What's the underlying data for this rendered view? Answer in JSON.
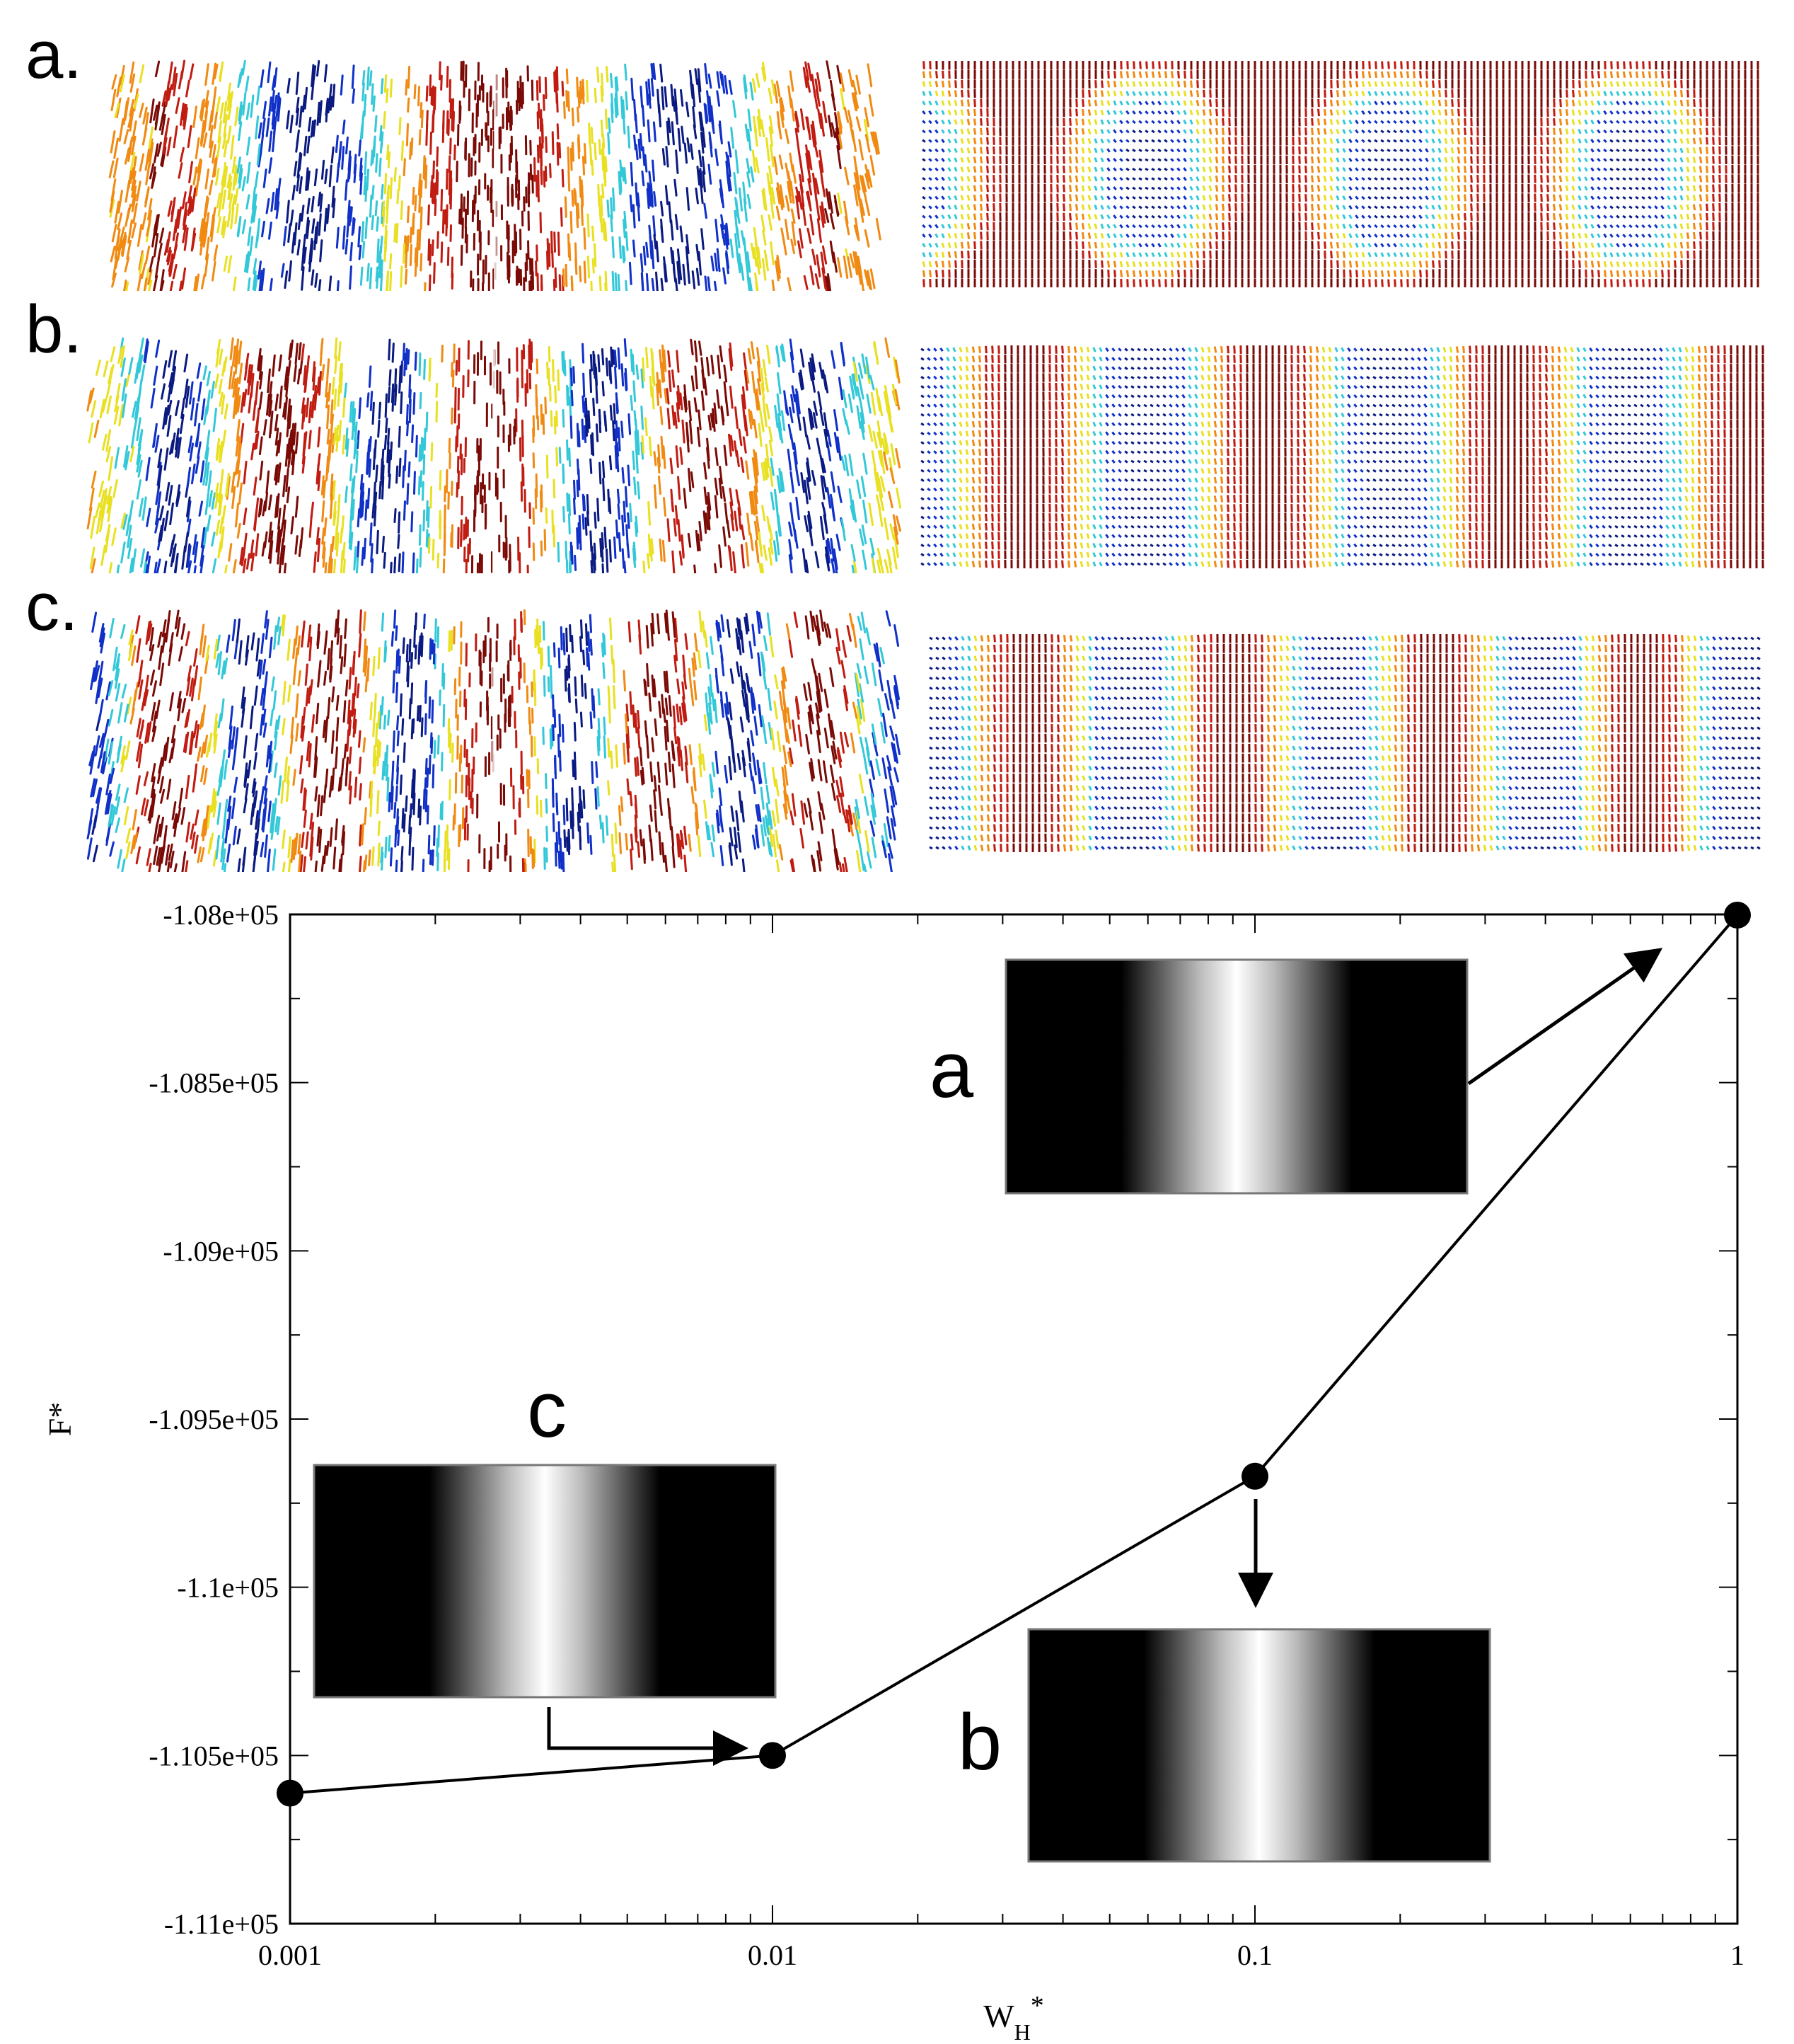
{
  "panel_labels": [
    "a.",
    "b.",
    "c."
  ],
  "colors": {
    "dark_red": "#7a0a06",
    "red": "#c01c12",
    "orange": "#f08a12",
    "yellow": "#e8e020",
    "cyan": "#33c8d8",
    "blue": "#1030c8",
    "navy": "#0a1a80",
    "white": "#ffffff",
    "black": "#000000"
  },
  "chart_data": {
    "type": "line",
    "xscale": "log",
    "xlabel": "W",
    "xlabel_sub": "H",
    "xlabel_sup": "*",
    "ylabel": "F*",
    "xlim": [
      0.001,
      1
    ],
    "ylim": [
      -111000,
      -108000
    ],
    "xticks": [
      {
        "value": 0.001,
        "label": "0.001"
      },
      {
        "value": 0.01,
        "label": "0.01"
      },
      {
        "value": 0.1,
        "label": "0.1"
      },
      {
        "value": 1,
        "label": "1"
      }
    ],
    "yticks": [
      {
        "value": -108000,
        "label": "-1.08e+05"
      },
      {
        "value": -108500,
        "label": "-1.085e+05"
      },
      {
        "value": -109000,
        "label": "-1.09e+05"
      },
      {
        "value": -109500,
        "label": "-1.095e+05"
      },
      {
        "value": -110000,
        "label": "-1.1e+05"
      },
      {
        "value": -110500,
        "label": "-1.105e+05"
      },
      {
        "value": -111000,
        "label": "-1.11e+05"
      }
    ],
    "series": [
      {
        "x": [
          0.001,
          0.01,
          0.1,
          1
        ],
        "y": [
          -110612,
          -110500,
          -109670,
          -108002
        ]
      }
    ],
    "insets": [
      {
        "label": "a",
        "points_to": 3
      },
      {
        "label": "b",
        "points_to": 2
      },
      {
        "label": "c",
        "points_to": 1
      }
    ]
  }
}
